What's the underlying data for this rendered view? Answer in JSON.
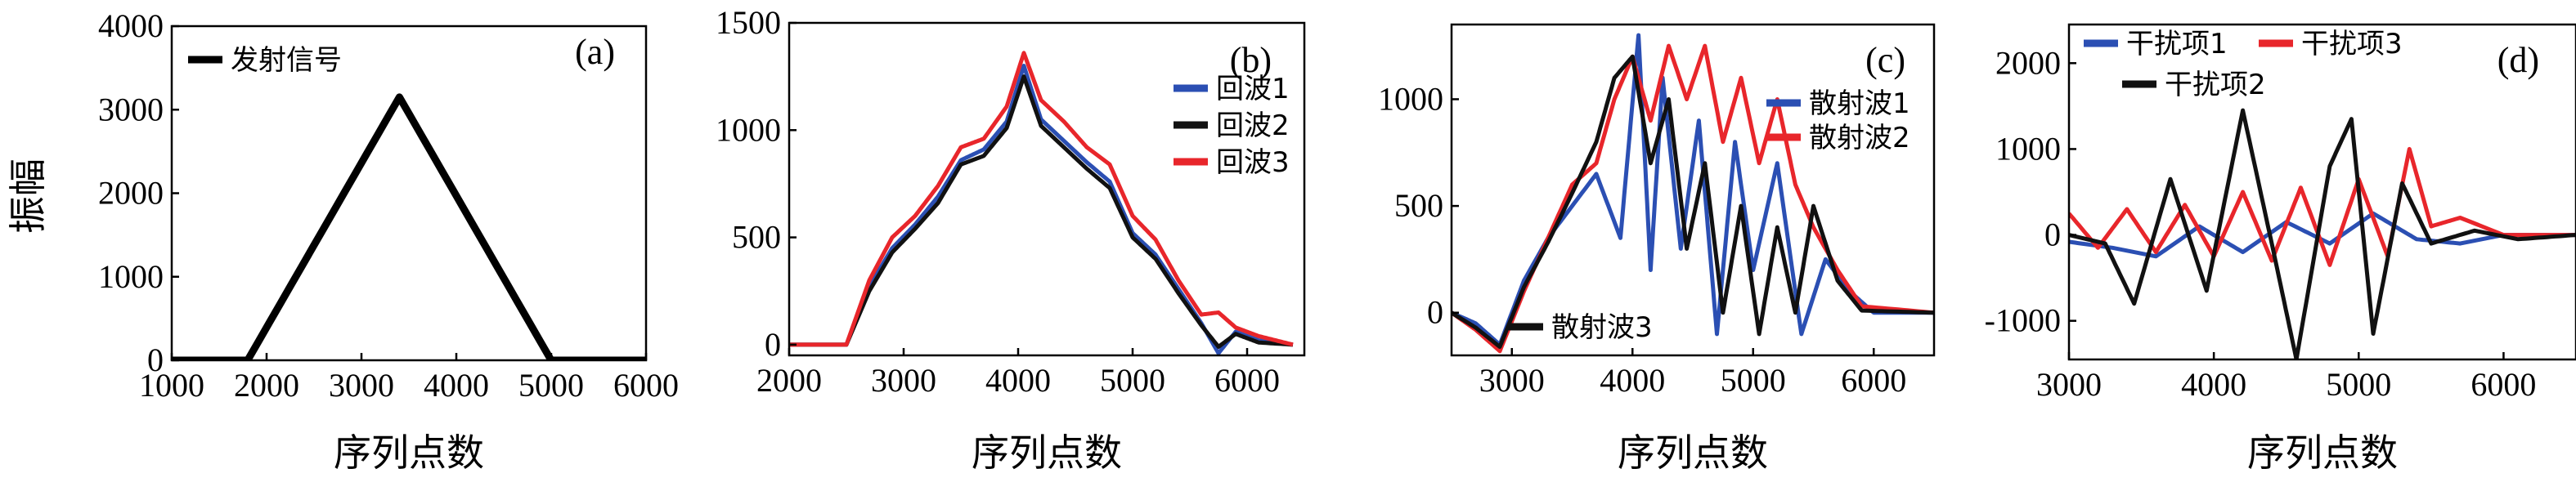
{
  "chart_data": [
    {
      "type": "line",
      "panel_label": "(a)",
      "xlabel": "序列点数",
      "ylabel": "振幅",
      "xlim": [
        1000,
        6000
      ],
      "ylim": [
        0,
        4000
      ],
      "xticks": [
        "1000",
        "2000",
        "3000",
        "4000",
        "5000",
        "6000"
      ],
      "yticks": [
        "0",
        "1000",
        "2000",
        "3000",
        "4000"
      ],
      "series": [
        {
          "name": "发射信号",
          "color": "#000000",
          "x": [
            1000,
            1800,
            3400,
            5000,
            6000
          ],
          "y": [
            0,
            0,
            3150,
            0,
            0
          ]
        }
      ]
    },
    {
      "type": "line",
      "panel_label": "(b)",
      "xlabel": "序列点数",
      "xlim": [
        2000,
        6500
      ],
      "ylim": [
        -50,
        1500
      ],
      "xticks": [
        "2000",
        "3000",
        "4000",
        "5000",
        "6000"
      ],
      "yticks": [
        "0",
        "500",
        "1000",
        "1500"
      ],
      "series": [
        {
          "name": "回波1",
          "color": "#2b4fb3",
          "x": [
            2000,
            2500,
            2700,
            2900,
            3100,
            3300,
            3500,
            3700,
            3900,
            4050,
            4200,
            4400,
            4600,
            4800,
            5000,
            5200,
            5400,
            5600,
            5750,
            5900,
            6100,
            6400
          ],
          "y": [
            0,
            0,
            270,
            450,
            560,
            690,
            860,
            910,
            1040,
            1300,
            1050,
            950,
            850,
            760,
            520,
            420,
            260,
            100,
            -40,
            60,
            20,
            0
          ]
        },
        {
          "name": "回波2",
          "color": "#111111",
          "x": [
            2000,
            2500,
            2700,
            2900,
            3100,
            3300,
            3500,
            3700,
            3900,
            4050,
            4200,
            4400,
            4600,
            4800,
            5000,
            5200,
            5400,
            5600,
            5750,
            5900,
            6100,
            6400
          ],
          "y": [
            0,
            0,
            250,
            430,
            540,
            660,
            840,
            880,
            1010,
            1250,
            1020,
            920,
            820,
            730,
            500,
            400,
            240,
            90,
            -10,
            50,
            10,
            0
          ]
        },
        {
          "name": "回波3",
          "color": "#e8262b",
          "x": [
            2000,
            2500,
            2700,
            2900,
            3100,
            3300,
            3500,
            3700,
            3900,
            4050,
            4200,
            4400,
            4600,
            4800,
            5000,
            5200,
            5400,
            5600,
            5750,
            5900,
            6100,
            6400
          ],
          "y": [
            0,
            0,
            300,
            500,
            600,
            740,
            920,
            960,
            1110,
            1360,
            1140,
            1040,
            920,
            840,
            600,
            490,
            300,
            140,
            150,
            80,
            40,
            0
          ]
        }
      ]
    },
    {
      "type": "line",
      "panel_label": "(c)",
      "xlabel": "序列点数",
      "xlim": [
        2500,
        6500
      ],
      "ylim": [
        -200,
        1350
      ],
      "xticks": [
        "3000",
        "4000",
        "5000",
        "6000"
      ],
      "yticks": [
        "0",
        "500",
        "1000"
      ],
      "series": [
        {
          "name": "散射波1",
          "color": "#2b4fb3",
          "x": [
            2500,
            2700,
            2900,
            3100,
            3300,
            3500,
            3700,
            3900,
            4050,
            4150,
            4250,
            4400,
            4550,
            4700,
            4850,
            5000,
            5200,
            5400,
            5600,
            5800,
            6000,
            6500
          ],
          "y": [
            0,
            -50,
            -150,
            150,
            350,
            500,
            650,
            350,
            1300,
            200,
            1100,
            300,
            900,
            -100,
            800,
            200,
            700,
            -100,
            250,
            100,
            0,
            0
          ]
        },
        {
          "name": "散射波2",
          "color": "#e8262b",
          "x": [
            2500,
            2700,
            2900,
            3100,
            3300,
            3500,
            3700,
            3850,
            4000,
            4150,
            4300,
            4450,
            4600,
            4750,
            4900,
            5050,
            5200,
            5350,
            5500,
            5700,
            5900,
            6500
          ],
          "y": [
            0,
            -80,
            -180,
            100,
            350,
            600,
            700,
            1000,
            1200,
            900,
            1250,
            1000,
            1250,
            800,
            1100,
            700,
            1000,
            600,
            400,
            200,
            30,
            0
          ]
        },
        {
          "name": "散射波3",
          "color": "#111111",
          "x": [
            2500,
            2700,
            2900,
            3100,
            3300,
            3500,
            3700,
            3850,
            4000,
            4150,
            4300,
            4450,
            4600,
            4750,
            4900,
            5050,
            5200,
            5350,
            5500,
            5700,
            5900,
            6500
          ],
          "y": [
            0,
            -70,
            -160,
            120,
            330,
            560,
            800,
            1100,
            1200,
            700,
            1000,
            300,
            700,
            0,
            500,
            -100,
            400,
            0,
            500,
            150,
            10,
            0
          ]
        }
      ]
    },
    {
      "type": "line",
      "panel_label": "(d)",
      "xlabel": "序列点数",
      "xlim": [
        3000,
        6500
      ],
      "ylim": [
        -1450,
        2450
      ],
      "xticks": [
        "3000",
        "4000",
        "5000",
        "6000"
      ],
      "yticks": [
        "-1000",
        "0",
        "1000",
        "2000"
      ],
      "series": [
        {
          "name": "干扰项1",
          "color": "#2b4fb3",
          "x": [
            3000,
            3300,
            3600,
            3900,
            4200,
            4500,
            4800,
            5100,
            5400,
            5700,
            6000,
            6500
          ],
          "y": [
            -80,
            -150,
            -250,
            100,
            -200,
            150,
            -100,
            250,
            -50,
            -100,
            0,
            0
          ]
        },
        {
          "name": "干扰项3",
          "color": "#e8262b",
          "x": [
            3000,
            3200,
            3400,
            3600,
            3800,
            4000,
            4200,
            4400,
            4600,
            4800,
            5000,
            5200,
            5350,
            5500,
            5700,
            6000,
            6500
          ],
          "y": [
            250,
            -150,
            300,
            -200,
            350,
            -250,
            500,
            -300,
            550,
            -350,
            650,
            -250,
            1000,
            100,
            200,
            0,
            0
          ]
        },
        {
          "name": "干扰项2",
          "color": "#111111",
          "x": [
            3000,
            3250,
            3450,
            3700,
            3950,
            4200,
            4400,
            4570,
            4800,
            4950,
            5100,
            5300,
            5500,
            5800,
            6100,
            6500
          ],
          "y": [
            0,
            -100,
            -800,
            650,
            -650,
            1450,
            -100,
            -1450,
            800,
            1350,
            -1150,
            600,
            -100,
            50,
            -50,
            0
          ]
        }
      ]
    }
  ]
}
